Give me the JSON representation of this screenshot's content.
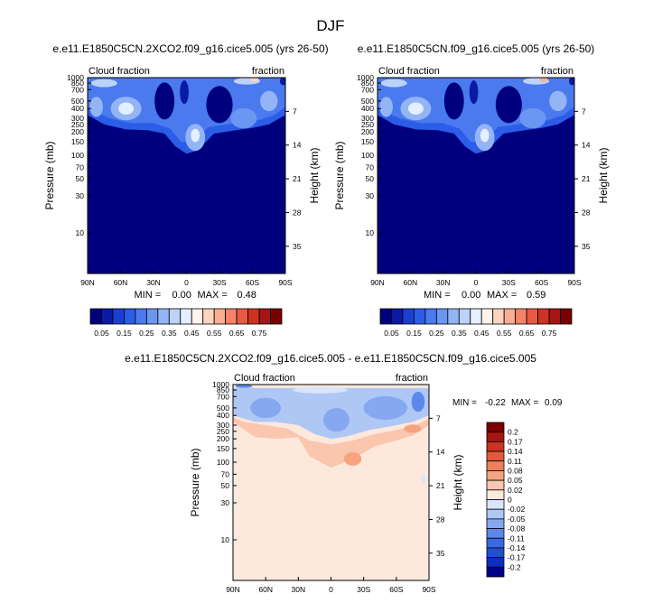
{
  "page": {
    "title": "DJF"
  },
  "colors": {
    "panel_scale": [
      "#00007f",
      "#0a1aa3",
      "#1a3fd0",
      "#2b5de8",
      "#4a7aee",
      "#6b97f2",
      "#93b4f5",
      "#bcd2f8",
      "#e4efff",
      "#fff3ea",
      "#fcd4bf",
      "#f9ad91",
      "#f4836a",
      "#e85a43",
      "#cd3324",
      "#a61515",
      "#7a0000"
    ],
    "diff_scale": [
      "#00008b",
      "#0b2fbf",
      "#1f4fd6",
      "#3a6ae0",
      "#5b88ea",
      "#85a8f0",
      "#afc7f5",
      "#d9e6fa",
      "#fde8dc",
      "#fac6ad",
      "#f6a380",
      "#f0805a",
      "#e5593a",
      "#cb3422",
      "#a51612",
      "#7a0000"
    ]
  },
  "chart_data": [
    {
      "type": "heatmap",
      "name": "panel-1",
      "title": "e.e11.E1850C5CN.2XCO2.f09_g16.cice5.005 (yrs 26-50)",
      "left_label": "Cloud fraction",
      "right_label": "fraction",
      "ylabel": "Pressure (mb)",
      "y2label": "Height (km)",
      "x_ticks": [
        "90N",
        "60N",
        "30N",
        "0",
        "30S",
        "60S",
        "90S"
      ],
      "y_ticks": [
        "10",
        "30",
        "50",
        "70",
        "100",
        "150",
        "200",
        "250",
        "300",
        "400",
        "500",
        "700",
        "850",
        "1000"
      ],
      "y2_ticks": [
        "35",
        "28",
        "21",
        "14",
        "7"
      ],
      "xlim": [
        90,
        -90
      ],
      "ylim_mb": [
        1000,
        3
      ],
      "min_label": "MIN =",
      "min_value": "0.00",
      "max_label": "MAX =",
      "max_value": "0.48",
      "colorbar_ticks": [
        "0.05",
        "0.15",
        "0.25",
        "0.35",
        "0.45",
        "0.55",
        "0.65",
        "0.75"
      ]
    },
    {
      "type": "heatmap",
      "name": "panel-2",
      "title": "e.e11.E1850C5CN.f09_g16.cice5.005 (yrs 26-50)",
      "left_label": "Cloud fraction",
      "right_label": "fraction",
      "ylabel": "Pressure (mb)",
      "y2label": "Height (km)",
      "x_ticks": [
        "90N",
        "60N",
        "30N",
        "0",
        "30S",
        "60S",
        "90S"
      ],
      "y_ticks": [
        "10",
        "30",
        "50",
        "70",
        "100",
        "150",
        "200",
        "250",
        "300",
        "400",
        "500",
        "700",
        "850",
        "1000"
      ],
      "y2_ticks": [
        "35",
        "28",
        "21",
        "14",
        "7"
      ],
      "xlim": [
        90,
        -90
      ],
      "ylim_mb": [
        1000,
        3
      ],
      "min_label": "MIN =",
      "min_value": "0.00",
      "max_label": "MAX =",
      "max_value": "0.59",
      "colorbar_ticks": [
        "0.05",
        "0.15",
        "0.25",
        "0.35",
        "0.45",
        "0.55",
        "0.65",
        "0.75"
      ]
    },
    {
      "type": "heatmap",
      "name": "panel-diff",
      "title": "e.e11.E1850C5CN.2XCO2.f09_g16.cice5.005 - e.e11.E1850C5CN.f09_g16.cice5.005",
      "left_label": "Cloud fraction",
      "right_label": "fraction",
      "ylabel": "Pressure (mb)",
      "y2label": "Height (km)",
      "x_ticks": [
        "90N",
        "60N",
        "30N",
        "0",
        "30S",
        "60S",
        "90S"
      ],
      "y_ticks": [
        "10",
        "30",
        "50",
        "70",
        "100",
        "150",
        "200",
        "250",
        "300",
        "400",
        "500",
        "700",
        "850",
        "1000"
      ],
      "y2_ticks": [
        "35",
        "28",
        "21",
        "14",
        "7"
      ],
      "xlim": [
        90,
        -90
      ],
      "ylim_mb": [
        1000,
        3
      ],
      "min_label": "MIN =",
      "min_value": "-0.22",
      "max_label": "MAX =",
      "max_value": "0.09",
      "colorbar_ticks": [
        "0.2",
        "0.17",
        "0.14",
        "0.11",
        "0.08",
        "0.05",
        "0.02",
        "0",
        "-0.02",
        "-0.05",
        "-0.08",
        "-0.11",
        "-0.14",
        "-0.17",
        "-0.2"
      ]
    }
  ]
}
